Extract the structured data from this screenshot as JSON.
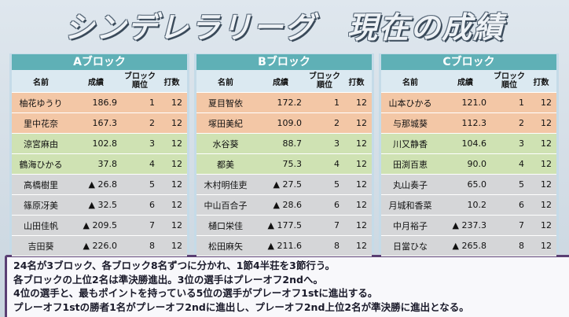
{
  "header": {
    "title": "シンデレラリーグ　現在の成績"
  },
  "columns": [
    "名前",
    "成績",
    "ブロック順位",
    "打数"
  ],
  "blocks": [
    {
      "name": "Aブロック",
      "rows": [
        [
          "柚花ゆうり",
          "186.9",
          1,
          12
        ],
        [
          "里中花奈",
          "167.3",
          2,
          12
        ],
        [
          "涼宮麻由",
          "102.8",
          3,
          12
        ],
        [
          "鶴海ひかる",
          "37.8",
          4,
          12
        ],
        [
          "高橋樹里",
          "▲ 26.8",
          5,
          12
        ],
        [
          "篠原冴美",
          "▲ 32.5",
          6,
          12
        ],
        [
          "山田佳帆",
          "▲ 209.5",
          7,
          12
        ],
        [
          "吉田葵",
          "▲ 226.0",
          8,
          12
        ]
      ]
    },
    {
      "name": "Bブロック",
      "rows": [
        [
          "夏目智依",
          "172.2",
          1,
          12
        ],
        [
          "塚田美紀",
          "109.0",
          2,
          12
        ],
        [
          "水谷葵",
          "88.7",
          3,
          12
        ],
        [
          "都美",
          "75.3",
          4,
          12
        ],
        [
          "木村明佳吏",
          "▲ 27.5",
          5,
          12
        ],
        [
          "中山百合子",
          "▲ 28.6",
          6,
          12
        ],
        [
          "樋口栄佳",
          "▲ 177.5",
          7,
          12
        ],
        [
          "松田麻矢",
          "▲ 211.6",
          8,
          12
        ]
      ]
    },
    {
      "name": "Cブロック",
      "rows": [
        [
          "山本ひかる",
          "121.0",
          1,
          12
        ],
        [
          "与那城葵",
          "112.3",
          2,
          12
        ],
        [
          "川又静香",
          "104.6",
          3,
          12
        ],
        [
          "田渕百恵",
          "90.0",
          4,
          12
        ],
        [
          "丸山奏子",
          "65.0",
          5,
          12
        ],
        [
          "月城和香菜",
          "10.2",
          6,
          12
        ],
        [
          "中月裕子",
          "▲ 237.3",
          7,
          12
        ],
        [
          "日當ひな",
          "▲ 265.8",
          8,
          12
        ]
      ]
    }
  ],
  "notes": [
    "24名が3ブロック、各ブロック8名ずつに分かれ、1節4半荘を3節行う。",
    "各ブロックの上位2名は準決勝進出。3位の選手はプレーオフ2ndへ。",
    "4位の選手と、最もポイントを持っている5位の選手がプレーオフ1stに進出する。",
    "プレーオフ1stの勝者1名がプレーオフ2ndに進出し、プレーオフ2nd上位2名が準決勝に進出となる。"
  ]
}
